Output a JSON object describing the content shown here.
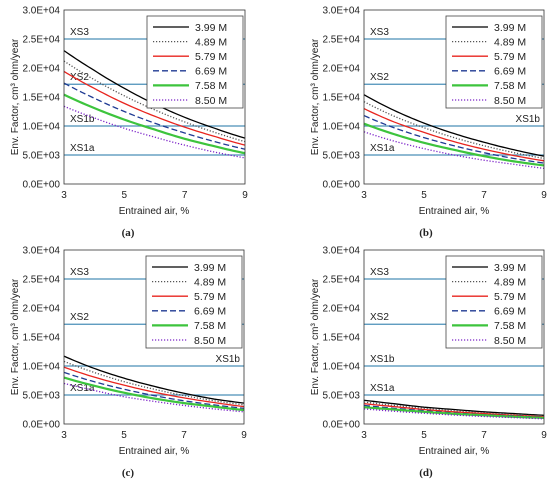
{
  "chart_data": [
    {
      "type": "line",
      "panel_label": "(a)",
      "xlabel": "Entrained air, %",
      "ylabel": "Env. Factor, cm³ ohm/year",
      "xlim": [
        3,
        9
      ],
      "ylim": [
        0,
        30000
      ],
      "xticks": [
        "3",
        "5",
        "7",
        "9"
      ],
      "yticks": [
        "0.0E+00",
        "5.0E+03",
        "1.0E+04",
        "1.5E+04",
        "2.0E+04",
        "2.5E+04",
        "3.0E+04"
      ],
      "legend_position": "top-right",
      "exposure_levels": [
        {
          "name": "XS3",
          "value": 25000,
          "color": "#4a8fb8"
        },
        {
          "name": "XS2",
          "value": 17200,
          "color": "#4a8fb8"
        },
        {
          "name": "XS1b",
          "value": 10000,
          "color": "#4a8fb8"
        },
        {
          "name": "XS1a",
          "value": 5000,
          "color": "#4a8fb8"
        }
      ],
      "x": [
        3,
        4,
        5,
        6,
        7,
        8,
        9
      ],
      "series": [
        {
          "name": "3.99 M",
          "color": "#000000",
          "style": "solid",
          "values": [
            23000,
            19600,
            16500,
            13800,
            11500,
            9600,
            7900
          ]
        },
        {
          "name": "4.89 M",
          "color": "#555555",
          "style": "dotted",
          "values": [
            21200,
            18000,
            15200,
            12800,
            10700,
            8900,
            7300
          ]
        },
        {
          "name": "5.79 M",
          "color": "#e8251f",
          "style": "solid",
          "values": [
            19400,
            16500,
            13900,
            11700,
            9800,
            8200,
            6700
          ]
        },
        {
          "name": "6.69 M",
          "color": "#1f3a93",
          "style": "dashed",
          "values": [
            17400,
            14800,
            12500,
            10500,
            8800,
            7300,
            6000
          ]
        },
        {
          "name": "7.58 M",
          "color": "#3dc43d",
          "style": "solid",
          "values": [
            15400,
            13100,
            11100,
            9400,
            7800,
            6500,
            5300
          ]
        },
        {
          "name": "8.50 M",
          "color": "#7b22c8",
          "style": "dotted",
          "values": [
            13400,
            11400,
            9600,
            8100,
            6700,
            5500,
            4500
          ]
        }
      ]
    },
    {
      "type": "line",
      "panel_label": "(b)",
      "xlabel": "Entrained air, %",
      "ylabel": "Env. Factor, cm³ ohm/year",
      "xlim": [
        3,
        9
      ],
      "ylim": [
        0,
        30000
      ],
      "xticks": [
        "3",
        "5",
        "7",
        "9"
      ],
      "yticks": [
        "0.0E+00",
        "5.0E+03",
        "1.0E+04",
        "1.5E+04",
        "2.0E+04",
        "2.5E+04",
        "3.0E+04"
      ],
      "legend_position": "top-right",
      "exposure_levels": [
        {
          "name": "XS3",
          "value": 25000,
          "color": "#4a8fb8"
        },
        {
          "name": "XS2",
          "value": 17200,
          "color": "#4a8fb8"
        },
        {
          "name": "XS1b",
          "value": 10000,
          "color": "#4a8fb8"
        },
        {
          "name": "XS1a",
          "value": 5000,
          "color": "#4a8fb8"
        }
      ],
      "x": [
        3,
        4,
        5,
        6,
        7,
        8,
        9
      ],
      "series": [
        {
          "name": "3.99 M",
          "color": "#000000",
          "style": "solid",
          "values": [
            15400,
            12700,
            10500,
            8700,
            7200,
            5900,
            4800
          ]
        },
        {
          "name": "4.89 M",
          "color": "#555555",
          "style": "dotted",
          "values": [
            14200,
            11700,
            9700,
            8000,
            6600,
            5400,
            4400
          ]
        },
        {
          "name": "5.79 M",
          "color": "#e8251f",
          "style": "solid",
          "values": [
            13000,
            10700,
            8900,
            7300,
            6000,
            4900,
            4000
          ]
        },
        {
          "name": "6.69 M",
          "color": "#1f3a93",
          "style": "dashed",
          "values": [
            11800,
            9700,
            8000,
            6600,
            5400,
            4400,
            3600
          ]
        },
        {
          "name": "7.58 M",
          "color": "#3dc43d",
          "style": "solid",
          "values": [
            10400,
            8600,
            7100,
            5900,
            4800,
            3900,
            3200
          ]
        },
        {
          "name": "8.50 M",
          "color": "#7b22c8",
          "style": "dotted",
          "values": [
            9000,
            7400,
            6100,
            5000,
            4100,
            3400,
            2700
          ]
        }
      ]
    },
    {
      "type": "line",
      "panel_label": "(c)",
      "xlabel": "Entrained air, %",
      "ylabel": "Env. Factor, cm³ ohm/year",
      "xlim": [
        3,
        9
      ],
      "ylim": [
        0,
        30000
      ],
      "xticks": [
        "3",
        "5",
        "7",
        "9"
      ],
      "yticks": [
        "0.0E+00",
        "5.0E+03",
        "1.0E+04",
        "1.5E+04",
        "2.0E+04",
        "2.5E+04",
        "3.0E+04"
      ],
      "legend_position": "top-right",
      "exposure_levels": [
        {
          "name": "XS3",
          "value": 25000,
          "color": "#4a8fb8"
        },
        {
          "name": "XS2",
          "value": 17200,
          "color": "#4a8fb8"
        },
        {
          "name": "XS1b",
          "value": 10000,
          "color": "#4a8fb8"
        },
        {
          "name": "XS1a",
          "value": 5000,
          "color": "#4a8fb8"
        }
      ],
      "x": [
        3,
        4,
        5,
        6,
        7,
        8,
        9
      ],
      "series": [
        {
          "name": "3.99 M",
          "color": "#000000",
          "style": "solid",
          "values": [
            11700,
            9600,
            7900,
            6500,
            5300,
            4300,
            3600
          ]
        },
        {
          "name": "4.89 M",
          "color": "#555555",
          "style": "dotted",
          "values": [
            10800,
            8900,
            7300,
            6000,
            4900,
            4000,
            3300
          ]
        },
        {
          "name": "5.79 M",
          "color": "#e8251f",
          "style": "solid",
          "values": [
            9800,
            8100,
            6700,
            5500,
            4500,
            3700,
            3000
          ]
        },
        {
          "name": "6.69 M",
          "color": "#1f3a93",
          "style": "dashed",
          "values": [
            8900,
            7300,
            6000,
            4900,
            4000,
            3300,
            2700
          ]
        },
        {
          "name": "7.58 M",
          "color": "#3dc43d",
          "style": "solid",
          "values": [
            8000,
            6600,
            5400,
            4400,
            3600,
            3000,
            2400
          ]
        },
        {
          "name": "8.50 M",
          "color": "#7b22c8",
          "style": "dotted",
          "values": [
            7000,
            5800,
            4700,
            3900,
            3200,
            2600,
            2100
          ]
        }
      ]
    },
    {
      "type": "line",
      "panel_label": "(d)",
      "xlabel": "Entrained air, %",
      "ylabel": "Env. Factor, cm³ ohm/year",
      "xlim": [
        3,
        9
      ],
      "ylim": [
        0,
        30000
      ],
      "xticks": [
        "3",
        "5",
        "7",
        "9"
      ],
      "yticks": [
        "0.0E+00",
        "5.0E+03",
        "1.0E+04",
        "1.5E+04",
        "2.0E+04",
        "2.5E+04",
        "3.0E+04"
      ],
      "legend_position": "top-right",
      "exposure_levels": [
        {
          "name": "XS3",
          "value": 25000,
          "color": "#4a8fb8"
        },
        {
          "name": "XS2",
          "value": 17200,
          "color": "#4a8fb8"
        },
        {
          "name": "XS1b",
          "value": 10000,
          "color": "#4a8fb8"
        },
        {
          "name": "XS1a",
          "value": 5000,
          "color": "#4a8fb8"
        }
      ],
      "x": [
        3,
        4,
        5,
        6,
        7,
        8,
        9
      ],
      "series": [
        {
          "name": "3.99 M",
          "color": "#000000",
          "style": "solid",
          "values": [
            4100,
            3500,
            2900,
            2500,
            2100,
            1800,
            1500
          ]
        },
        {
          "name": "4.89 M",
          "color": "#555555",
          "style": "dotted",
          "values": [
            3800,
            3200,
            2700,
            2300,
            1900,
            1600,
            1400
          ]
        },
        {
          "name": "5.79 M",
          "color": "#e8251f",
          "style": "solid",
          "values": [
            3500,
            3000,
            2500,
            2100,
            1800,
            1500,
            1250
          ]
        },
        {
          "name": "6.69 M",
          "color": "#1f3a93",
          "style": "dashed",
          "values": [
            3200,
            2700,
            2300,
            1900,
            1600,
            1400,
            1150
          ]
        },
        {
          "name": "7.58 M",
          "color": "#3dc43d",
          "style": "solid",
          "values": [
            2900,
            2500,
            2100,
            1750,
            1500,
            1250,
            1050
          ]
        },
        {
          "name": "8.50 M",
          "color": "#7b22c8",
          "style": "dotted",
          "values": [
            2600,
            2200,
            1850,
            1550,
            1300,
            1100,
            900
          ]
        }
      ]
    }
  ]
}
